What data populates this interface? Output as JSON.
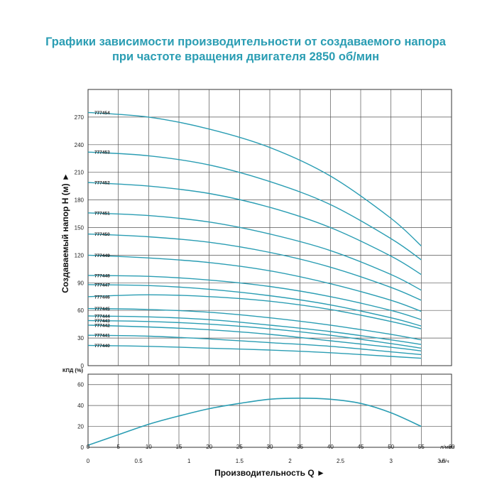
{
  "title_lines": [
    "Графики зависимости производительности от создаваемого напора",
    "при частоте вращения двигателя 2850 об/мин"
  ],
  "chart_data": [
    {
      "type": "line",
      "ylabel": "Создаваемый напор H (м) ►",
      "xlim": [
        0,
        60
      ],
      "ylim": [
        0,
        300
      ],
      "y_ticks": [
        0,
        30,
        60,
        90,
        120,
        150,
        180,
        210,
        240,
        270
      ],
      "grid": true,
      "series": [
        {
          "name": "777440",
          "x": [
            0,
            10,
            20,
            30,
            40,
            50,
            55
          ],
          "y": [
            22,
            21,
            19,
            17,
            14,
            10,
            8
          ]
        },
        {
          "name": "777441",
          "x": [
            0,
            10,
            20,
            30,
            40,
            50,
            55
          ],
          "y": [
            33,
            32,
            29,
            25,
            21,
            15,
            12
          ]
        },
        {
          "name": "777442",
          "x": [
            0,
            10,
            20,
            30,
            40,
            50,
            55
          ],
          "y": [
            44,
            42,
            39,
            34,
            27,
            20,
            16
          ]
        },
        {
          "name": "777443",
          "x": [
            0,
            10,
            20,
            30,
            40,
            50,
            55
          ],
          "y": [
            49,
            48,
            45,
            40,
            33,
            24,
            19
          ]
        },
        {
          "name": "777444",
          "x": [
            0,
            10,
            20,
            30,
            40,
            50,
            55
          ],
          "y": [
            54,
            53,
            50,
            44,
            37,
            28,
            23
          ]
        },
        {
          "name": "777445",
          "x": [
            0,
            10,
            20,
            30,
            40,
            50,
            55
          ],
          "y": [
            62,
            61,
            58,
            52,
            44,
            34,
            28
          ]
        },
        {
          "name": "777446",
          "x": [
            0,
            10,
            20,
            30,
            40,
            50,
            55
          ],
          "y": [
            75,
            77,
            75,
            70,
            61,
            48,
            40
          ]
        },
        {
          "name": "777447",
          "x": [
            0,
            10,
            20,
            30,
            40,
            50,
            55
          ],
          "y": [
            88,
            87,
            83,
            76,
            66,
            52,
            43
          ]
        },
        {
          "name": "777448",
          "x": [
            0,
            10,
            20,
            30,
            40,
            50,
            55
          ],
          "y": [
            98,
            97,
            93,
            86,
            75,
            60,
            50
          ]
        },
        {
          "name": "777449",
          "x": [
            0,
            10,
            20,
            30,
            40,
            50,
            55
          ],
          "y": [
            120,
            117,
            112,
            103,
            89,
            71,
            59
          ]
        },
        {
          "name": "777450",
          "x": [
            0,
            10,
            20,
            30,
            40,
            50,
            55
          ],
          "y": [
            143,
            140,
            134,
            123,
            107,
            85,
            71
          ]
        },
        {
          "name": "777451",
          "x": [
            0,
            10,
            20,
            30,
            40,
            50,
            55
          ],
          "y": [
            166,
            163,
            156,
            143,
            125,
            99,
            82
          ]
        },
        {
          "name": "777452",
          "x": [
            0,
            10,
            20,
            30,
            40,
            50,
            55
          ],
          "y": [
            199,
            195,
            187,
            172,
            150,
            119,
            99
          ]
        },
        {
          "name": "777453",
          "x": [
            0,
            10,
            20,
            30,
            40,
            50,
            55
          ],
          "y": [
            232,
            228,
            218,
            200,
            175,
            138,
            115
          ]
        },
        {
          "name": "777454",
          "x": [
            0,
            10,
            20,
            30,
            40,
            50,
            55
          ],
          "y": [
            275,
            270,
            257,
            237,
            206,
            160,
            130
          ]
        }
      ]
    },
    {
      "type": "line",
      "ylabel": "КПД (%)",
      "xlim": [
        0,
        60
      ],
      "ylim": [
        0,
        70
      ],
      "y_ticks": [
        0,
        20,
        40,
        60
      ],
      "grid": true,
      "series": [
        {
          "x": [
            0,
            5,
            10,
            15,
            20,
            25,
            30,
            35,
            40,
            45,
            50,
            55
          ],
          "y": [
            2,
            12,
            22,
            30,
            37,
            42,
            46,
            47,
            46,
            42,
            33,
            20
          ]
        }
      ]
    }
  ],
  "x_axis": {
    "lpm_ticks": [
      "0",
      "5",
      "10",
      "15",
      "20",
      "25",
      "30",
      "35",
      "40",
      "45",
      "50",
      "55",
      "60"
    ],
    "lpm_unit": "л/мин",
    "m3h_ticks": [
      "0",
      "0.5",
      "1",
      "1.5",
      "2",
      "2.5",
      "3",
      "3.5"
    ],
    "m3h_unit": "м³/ч",
    "label": "Производительность Q ►"
  },
  "colors": {
    "title": "#2a9db3",
    "curve": "#2a9db3",
    "grid": "#555555",
    "text": "#222222"
  }
}
